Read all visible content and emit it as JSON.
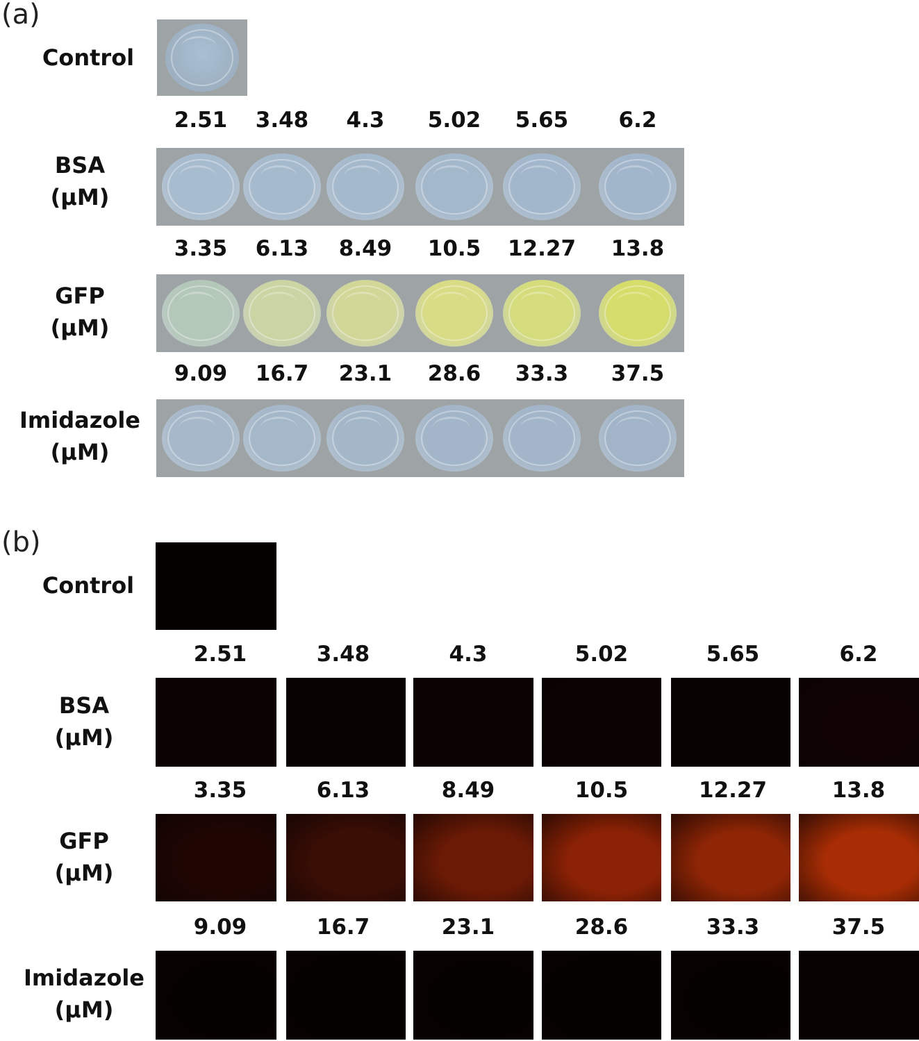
{
  "panels": {
    "a": {
      "label": "(a)",
      "control_label": "Control",
      "rows": [
        {
          "name": "BSA",
          "unit": "(μM)",
          "values": [
            "2.51",
            "3.48",
            "4.3",
            "5.02",
            "5.65",
            "6.2"
          ],
          "well_colors": [
            "#a8bccf",
            "#a6bace",
            "#a5b9cd",
            "#a4b8cc",
            "#a3b7cc",
            "#a2b6cb"
          ]
        },
        {
          "name": "GFP",
          "unit": "(μM)",
          "values": [
            "3.35",
            "6.13",
            "8.49",
            "10.5",
            "12.27",
            "13.8"
          ],
          "well_colors": [
            "#b4c8b9",
            "#cbd4a3",
            "#d2d797",
            "#d9dc84",
            "#d5dc7c",
            "#d6dd6a"
          ]
        },
        {
          "name": "Imidazole",
          "unit": "(μM)",
          "values": [
            "9.09",
            "16.7",
            "23.1",
            "28.6",
            "33.3",
            "37.5"
          ],
          "well_colors": [
            "#a6b8ca",
            "#a5b8ca",
            "#a4b7c9",
            "#a3b6c9",
            "#a2b5c9",
            "#a1b4c8"
          ]
        }
      ],
      "control_color": "#a9bfd2"
    },
    "b": {
      "label": "(b)",
      "control_label": "Control",
      "rows": [
        {
          "name": "BSA",
          "unit": "(μM)",
          "values": [
            "2.51",
            "3.48",
            "4.3",
            "5.02",
            "5.65",
            "6.2"
          ],
          "tile_colors": [
            "#0d0202",
            "#080101",
            "#0c0202",
            "#0b0201",
            "#070101",
            "#110303"
          ]
        },
        {
          "name": "GFP",
          "unit": "(μM)",
          "values": [
            "3.35",
            "6.13",
            "8.49",
            "10.5",
            "12.27",
            "13.8"
          ],
          "tile_colors": [
            "#1f0603",
            "#3a0e05",
            "#6a1a05",
            "#8c2205",
            "#8e2505",
            "#a82d05"
          ]
        },
        {
          "name": "Imidazole",
          "unit": "(μM)",
          "values": [
            "9.09",
            "16.7",
            "23.1",
            "28.6",
            "33.3",
            "37.5"
          ],
          "tile_colors": [
            "#060101",
            "#050101",
            "#060101",
            "#050101",
            "#060101",
            "#080101"
          ]
        }
      ],
      "control_color": "#050101"
    }
  }
}
